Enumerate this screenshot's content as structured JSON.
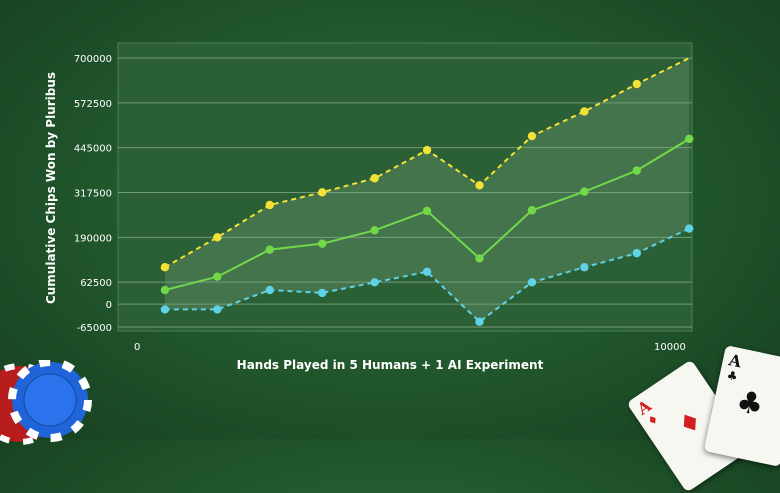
{
  "chart_data": {
    "type": "line",
    "xlabel": "Hands Played in 5 Humans + 1 AI Experiment",
    "ylabel": "Cumulative Chips Won by Pluribus",
    "x_ticks": [
      {
        "value": 0,
        "label": "0"
      },
      {
        "value": 10000,
        "label": "10000"
      }
    ],
    "y_ticks": [
      {
        "value": 700000,
        "label": "700000"
      },
      {
        "value": 572500,
        "label": "572500"
      },
      {
        "value": 445000,
        "label": "445000"
      },
      {
        "value": 317500,
        "label": "317500"
      },
      {
        "value": 190000,
        "label": "190000"
      },
      {
        "value": 62500,
        "label": "62500"
      },
      {
        "value": 0,
        "label": "0"
      },
      {
        "value": -65000,
        "label": "-65000"
      }
    ],
    "xlim": [
      0,
      10400
    ],
    "ylim": [
      -65000,
      700000
    ],
    "grid": true,
    "x": [
      850,
      1800,
      2750,
      3700,
      4650,
      5600,
      6550,
      7500,
      8450,
      9400,
      10350
    ],
    "series": [
      {
        "values": [
          105000,
          190000,
          282000,
          318000,
          358000,
          438000,
          338000,
          478000,
          548000,
          626000,
          700000
        ],
        "color": "#f2e235",
        "dashed": true
      },
      {
        "values": [
          40000,
          78000,
          155000,
          172000,
          210000,
          265000,
          130000,
          267000,
          320000,
          380000,
          470000
        ],
        "color": "#72d84a",
        "dashed": false
      },
      {
        "values": [
          -15000,
          -15000,
          40000,
          32000,
          62000,
          92000,
          -50000,
          62000,
          105000,
          145000,
          215000
        ],
        "color": "#5fd2e6",
        "dashed": true
      }
    ]
  },
  "colors": {
    "background": "#235a2e",
    "plot_fill": "#2b5f35",
    "band_fill": "#5a8a5e",
    "grid": "#7fa583"
  },
  "decorations": {
    "left_icon": "poker-chips",
    "right_icon": "playing-cards-aces",
    "card_rank": "A",
    "card_suits": [
      "diamond",
      "club"
    ]
  }
}
